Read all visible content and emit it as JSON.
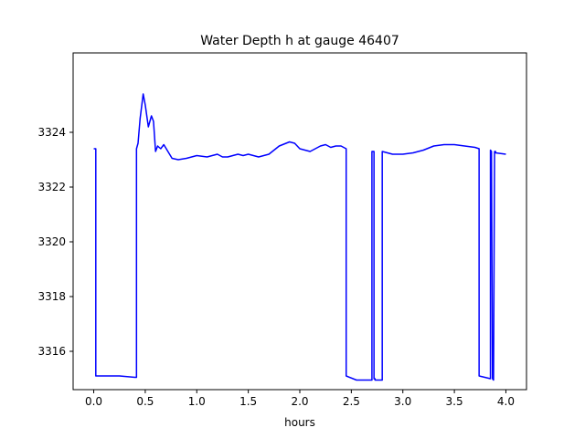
{
  "chart_data": {
    "type": "line",
    "title": "Water Depth h at gauge 46407",
    "xlabel": "hours",
    "ylabel": "",
    "xlim": [
      -0.2,
      4.2
    ],
    "ylim": [
      3314.6,
      3326.9
    ],
    "xticks": [
      0.0,
      0.5,
      1.0,
      1.5,
      2.0,
      2.5,
      3.0,
      3.5,
      4.0
    ],
    "xtick_labels": [
      "0.0",
      "0.5",
      "1.0",
      "1.5",
      "2.0",
      "2.5",
      "3.0",
      "3.5",
      "4.0"
    ],
    "yticks": [
      3316,
      3318,
      3320,
      3322,
      3324
    ],
    "ytick_labels": [
      "3316",
      "3318",
      "3320",
      "3322",
      "3324"
    ],
    "grid": false,
    "series": [
      {
        "color": "#0000ff",
        "x": [
          0.0,
          0.02,
          0.02,
          0.25,
          0.4,
          0.415,
          0.415,
          0.43,
          0.45,
          0.48,
          0.5,
          0.53,
          0.56,
          0.58,
          0.6,
          0.62,
          0.65,
          0.68,
          0.72,
          0.76,
          0.82,
          0.9,
          1.0,
          1.1,
          1.2,
          1.25,
          1.3,
          1.4,
          1.45,
          1.5,
          1.6,
          1.7,
          1.8,
          1.9,
          1.95,
          2.0,
          2.1,
          2.2,
          2.25,
          2.3,
          2.35,
          2.4,
          2.45,
          2.45,
          2.55,
          2.7,
          2.7,
          2.72,
          2.72,
          2.73,
          2.73,
          2.8,
          2.8,
          2.9,
          3.0,
          3.1,
          3.2,
          3.3,
          3.4,
          3.5,
          3.6,
          3.7,
          3.74,
          3.74,
          3.85,
          3.85,
          3.86,
          3.87,
          3.88,
          3.89,
          3.9,
          3.9,
          4.0
        ],
        "y": [
          3323.4,
          3323.4,
          3315.1,
          3315.1,
          3315.05,
          3315.05,
          3323.4,
          3323.6,
          3324.5,
          3325.4,
          3325.0,
          3324.2,
          3324.6,
          3324.4,
          3323.3,
          3323.5,
          3323.4,
          3323.55,
          3323.3,
          3323.05,
          3323.0,
          3323.05,
          3323.15,
          3323.1,
          3323.2,
          3323.1,
          3323.1,
          3323.2,
          3323.15,
          3323.2,
          3323.1,
          3323.2,
          3323.5,
          3323.65,
          3323.6,
          3323.4,
          3323.3,
          3323.5,
          3323.55,
          3323.45,
          3323.5,
          3323.5,
          3323.4,
          3315.1,
          3314.95,
          3314.95,
          3323.3,
          3323.3,
          3315.0,
          3315.0,
          3314.95,
          3314.95,
          3323.3,
          3323.2,
          3323.2,
          3323.25,
          3323.35,
          3323.5,
          3323.55,
          3323.55,
          3323.5,
          3323.45,
          3323.4,
          3315.1,
          3315.0,
          3323.35,
          3323.3,
          3315.0,
          3314.95,
          3323.3,
          3323.3,
          3323.25,
          3323.2
        ]
      }
    ]
  }
}
